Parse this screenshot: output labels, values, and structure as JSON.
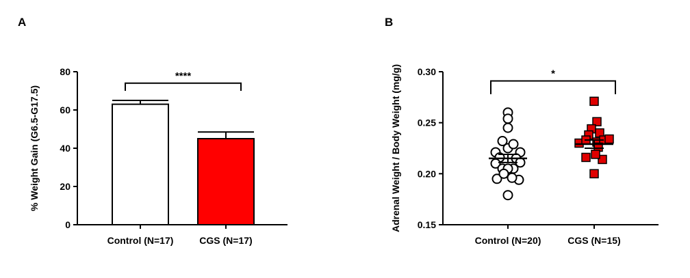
{
  "chart_data": [
    {
      "type": "bar",
      "panel_label": "A",
      "title": "",
      "ylabel": "% Weight Gain (G6.5-G17.5)",
      "xlabel": "",
      "ylim": [
        0,
        80
      ],
      "yticks": [
        0,
        20,
        40,
        60,
        80
      ],
      "categories": [
        "Control (N=17)",
        "CGS (N=17)"
      ],
      "values": [
        63,
        45
      ],
      "errors": [
        2,
        3.5
      ],
      "colors": [
        "#ffffff",
        "#ff0000"
      ],
      "significance": {
        "label": "****",
        "between": [
          0,
          1
        ],
        "y": 74,
        "drop": 4
      },
      "grid": false
    },
    {
      "type": "scatter",
      "panel_label": "B",
      "title": "",
      "ylabel": "Adrenal Weight / Body Weight (mg/g)",
      "xlabel": "",
      "ylim": [
        0.15,
        0.3
      ],
      "yticks": [
        "0.15",
        "0.20",
        "0.25",
        "0.30"
      ],
      "categories": [
        "Control (N=20)",
        "CGS  (N=15)"
      ],
      "series": [
        {
          "marker": "circle",
          "color": "#ffffff",
          "mean": 0.215,
          "sem": 0.004,
          "points": [
            {
              "dx": 0,
              "y": 0.26
            },
            {
              "dx": 0,
              "y": 0.254
            },
            {
              "dx": 0,
              "y": 0.245
            },
            {
              "dx": 0,
              "y": 0.225
            },
            {
              "dx": -0.45,
              "y": 0.221
            },
            {
              "dx": 0.45,
              "y": 0.221
            },
            {
              "dx": -0.2,
              "y": 0.232
            },
            {
              "dx": 0.2,
              "y": 0.229
            },
            {
              "dx": -0.3,
              "y": 0.216
            },
            {
              "dx": 0.3,
              "y": 0.215
            },
            {
              "dx": -0.45,
              "y": 0.21
            },
            {
              "dx": 0.45,
              "y": 0.211
            },
            {
              "dx": -0.2,
              "y": 0.205
            },
            {
              "dx": 0.2,
              "y": 0.205
            },
            {
              "dx": 0,
              "y": 0.205
            },
            {
              "dx": -0.4,
              "y": 0.195
            },
            {
              "dx": 0.4,
              "y": 0.194
            },
            {
              "dx": -0.15,
              "y": 0.2
            },
            {
              "dx": 0.15,
              "y": 0.196
            },
            {
              "dx": 0,
              "y": 0.179
            }
          ]
        },
        {
          "marker": "square",
          "color": "#e00000",
          "mean": 0.229,
          "sem": 0.004,
          "points": [
            {
              "dx": 0,
              "y": 0.271
            },
            {
              "dx": 0.1,
              "y": 0.251
            },
            {
              "dx": -0.1,
              "y": 0.244
            },
            {
              "dx": 0.2,
              "y": 0.24
            },
            {
              "dx": -0.2,
              "y": 0.238
            },
            {
              "dx": -0.55,
              "y": 0.23
            },
            {
              "dx": -0.3,
              "y": 0.233
            },
            {
              "dx": 0.1,
              "y": 0.231
            },
            {
              "dx": 0.35,
              "y": 0.233
            },
            {
              "dx": 0.55,
              "y": 0.234
            },
            {
              "dx": 0.15,
              "y": 0.226
            },
            {
              "dx": -0.3,
              "y": 0.216
            },
            {
              "dx": 0.3,
              "y": 0.214
            },
            {
              "dx": 0.05,
              "y": 0.219
            },
            {
              "dx": 0,
              "y": 0.2
            }
          ]
        }
      ],
      "significance": {
        "label": "*",
        "between": [
          0,
          1
        ],
        "y": 0.291,
        "drop": 0.013
      },
      "grid": false
    }
  ]
}
